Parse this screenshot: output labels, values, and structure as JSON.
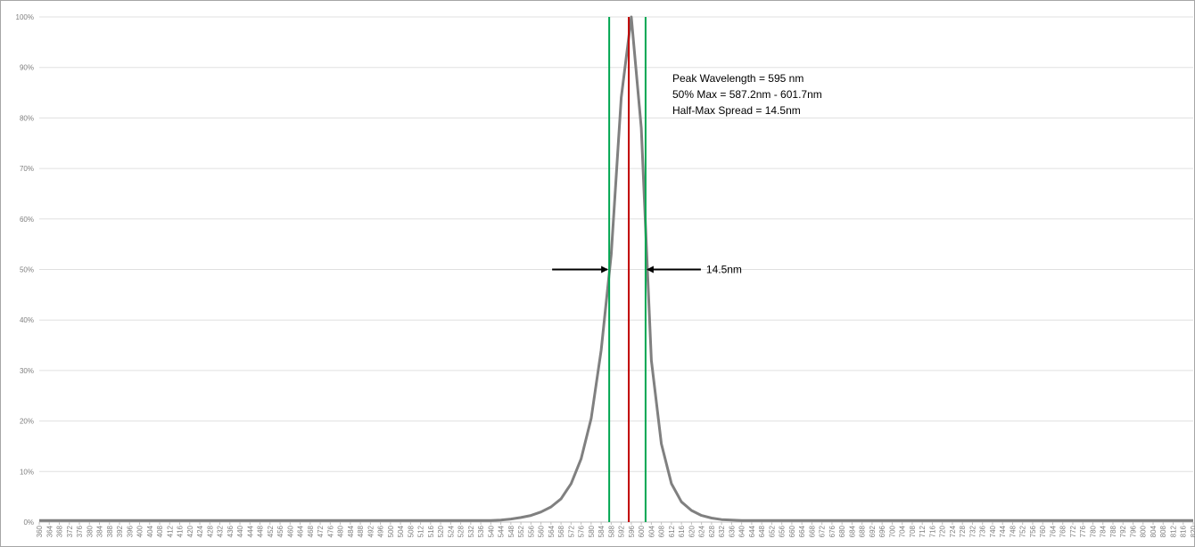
{
  "chart_data": {
    "type": "line",
    "title": "",
    "xlabel": "",
    "ylabel": "",
    "x_range": [
      360,
      820
    ],
    "x_tick_step": 4,
    "y_range": [
      0,
      100
    ],
    "y_ticks": [
      "0%",
      "10%",
      "20%",
      "30%",
      "40%",
      "50%",
      "60%",
      "70%",
      "80%",
      "90%",
      "100%"
    ],
    "grid": true,
    "legend": "none",
    "series": [
      {
        "color": "#808080",
        "points": [
          [
            360,
            0.3
          ],
          [
            540,
            0.3
          ],
          [
            544,
            0.4
          ],
          [
            548,
            0.6
          ],
          [
            552,
            0.9
          ],
          [
            556,
            1.3
          ],
          [
            560,
            2
          ],
          [
            564,
            3
          ],
          [
            568,
            4.6
          ],
          [
            572,
            7.6
          ],
          [
            576,
            12.5
          ],
          [
            580,
            20.5
          ],
          [
            584,
            34
          ],
          [
            588,
            53
          ],
          [
            592,
            84
          ],
          [
            596,
            100
          ],
          [
            600,
            78
          ],
          [
            604,
            32
          ],
          [
            608,
            15.5
          ],
          [
            612,
            7.6
          ],
          [
            616,
            4
          ],
          [
            620,
            2.3
          ],
          [
            624,
            1.3
          ],
          [
            628,
            0.8
          ],
          [
            632,
            0.5
          ],
          [
            636,
            0.4
          ],
          [
            640,
            0.3
          ],
          [
            820,
            0.3
          ]
        ]
      }
    ],
    "vertical_lines": [
      {
        "x": 587.2,
        "color": "#00a651"
      },
      {
        "x": 595,
        "color": "#c00000"
      },
      {
        "x": 601.7,
        "color": "#00a651"
      }
    ],
    "half_max_arrows": {
      "y": 50,
      "left_x": 587.2,
      "right_x": 601.7,
      "label": "14.5nm"
    },
    "annotations": [
      "Peak Wavelength = 595 nm",
      "50% Max = 587.2nm - 601.7nm",
      "Half-Max Spread  = 14.5nm"
    ]
  }
}
